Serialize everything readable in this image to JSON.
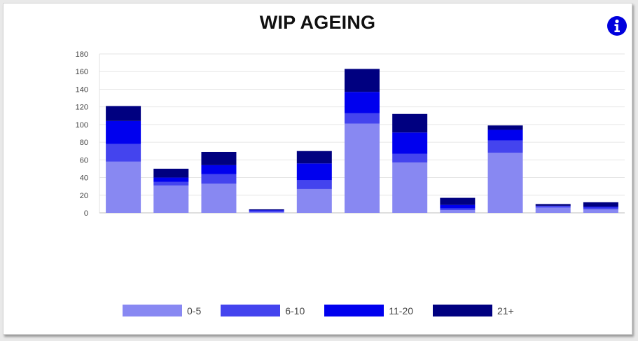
{
  "widget": {
    "title": "WIP AGEING",
    "info_icon": "info-icon"
  },
  "colors": {
    "0-5": "#8888f2",
    "6-10": "#4444ee",
    "11-20": "#0000ee",
    "21+": "#000080",
    "info": "#0000dd"
  },
  "chart_data": {
    "type": "bar",
    "stacked": true,
    "categories": [
      "",
      "",
      "",
      "",
      "",
      "",
      "",
      "",
      "",
      "",
      ""
    ],
    "series": [
      {
        "name": "0-5",
        "color": "#8888f2",
        "values": [
          58,
          31,
          33,
          1,
          27,
          101,
          57,
          3,
          68,
          6,
          4
        ]
      },
      {
        "name": "6-10",
        "color": "#4444ee",
        "values": [
          20,
          4,
          11,
          1,
          10,
          12,
          10,
          2,
          14,
          2,
          2
        ]
      },
      {
        "name": "11-20",
        "color": "#0000ee",
        "values": [
          26,
          5,
          10,
          1,
          19,
          24,
          24,
          4,
          12,
          0,
          1
        ]
      },
      {
        "name": "21+",
        "color": "#000080",
        "values": [
          17,
          10,
          15,
          1,
          14,
          26,
          21,
          8,
          5,
          2,
          5
        ]
      }
    ],
    "yticks": [
      "0",
      "20",
      "40",
      "60",
      "80",
      "100",
      "120",
      "140",
      "160",
      "180"
    ],
    "ylim": [
      0,
      180
    ],
    "grid": true,
    "legend_position": "bottom",
    "xlabel": "",
    "ylabel": ""
  }
}
